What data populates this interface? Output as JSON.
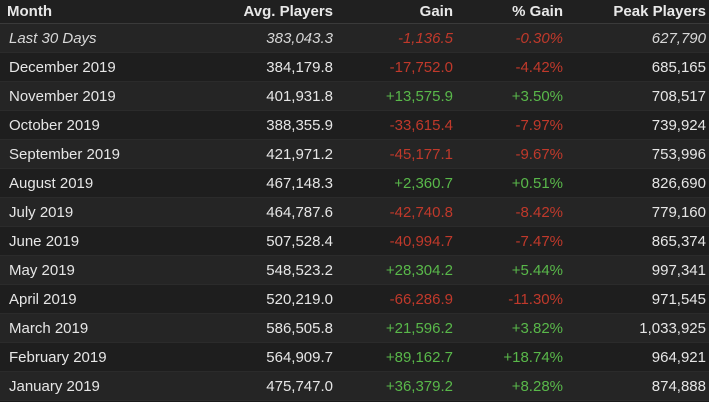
{
  "colors": {
    "negative": "#c0392b",
    "positive": "#59b84a"
  },
  "headers": {
    "month": "Month",
    "avg": "Avg. Players",
    "gain": "Gain",
    "pct": "% Gain",
    "peak": "Peak Players"
  },
  "rows": [
    {
      "month": "Last 30 Days",
      "avg": "383,043.3",
      "gain": "-1,136.5",
      "pct": "-0.30%",
      "peak": "627,790",
      "trend": "neg"
    },
    {
      "month": "December 2019",
      "avg": "384,179.8",
      "gain": "-17,752.0",
      "pct": "-4.42%",
      "peak": "685,165",
      "trend": "neg"
    },
    {
      "month": "November 2019",
      "avg": "401,931.8",
      "gain": "+13,575.9",
      "pct": "+3.50%",
      "peak": "708,517",
      "trend": "pos"
    },
    {
      "month": "October 2019",
      "avg": "388,355.9",
      "gain": "-33,615.4",
      "pct": "-7.97%",
      "peak": "739,924",
      "trend": "neg"
    },
    {
      "month": "September 2019",
      "avg": "421,971.2",
      "gain": "-45,177.1",
      "pct": "-9.67%",
      "peak": "753,996",
      "trend": "neg"
    },
    {
      "month": "August 2019",
      "avg": "467,148.3",
      "gain": "+2,360.7",
      "pct": "+0.51%",
      "peak": "826,690",
      "trend": "pos"
    },
    {
      "month": "July 2019",
      "avg": "464,787.6",
      "gain": "-42,740.8",
      "pct": "-8.42%",
      "peak": "779,160",
      "trend": "neg"
    },
    {
      "month": "June 2019",
      "avg": "507,528.4",
      "gain": "-40,994.7",
      "pct": "-7.47%",
      "peak": "865,374",
      "trend": "neg"
    },
    {
      "month": "May 2019",
      "avg": "548,523.2",
      "gain": "+28,304.2",
      "pct": "+5.44%",
      "peak": "997,341",
      "trend": "pos"
    },
    {
      "month": "April 2019",
      "avg": "520,219.0",
      "gain": "-66,286.9",
      "pct": "-11.30%",
      "peak": "971,545",
      "trend": "neg"
    },
    {
      "month": "March 2019",
      "avg": "586,505.8",
      "gain": "+21,596.2",
      "pct": "+3.82%",
      "peak": "1,033,925",
      "trend": "pos"
    },
    {
      "month": "February 2019",
      "avg": "564,909.7",
      "gain": "+89,162.7",
      "pct": "+18.74%",
      "peak": "964,921",
      "trend": "pos"
    },
    {
      "month": "January 2019",
      "avg": "475,747.0",
      "gain": "+36,379.2",
      "pct": "+8.28%",
      "peak": "874,888",
      "trend": "pos"
    }
  ]
}
